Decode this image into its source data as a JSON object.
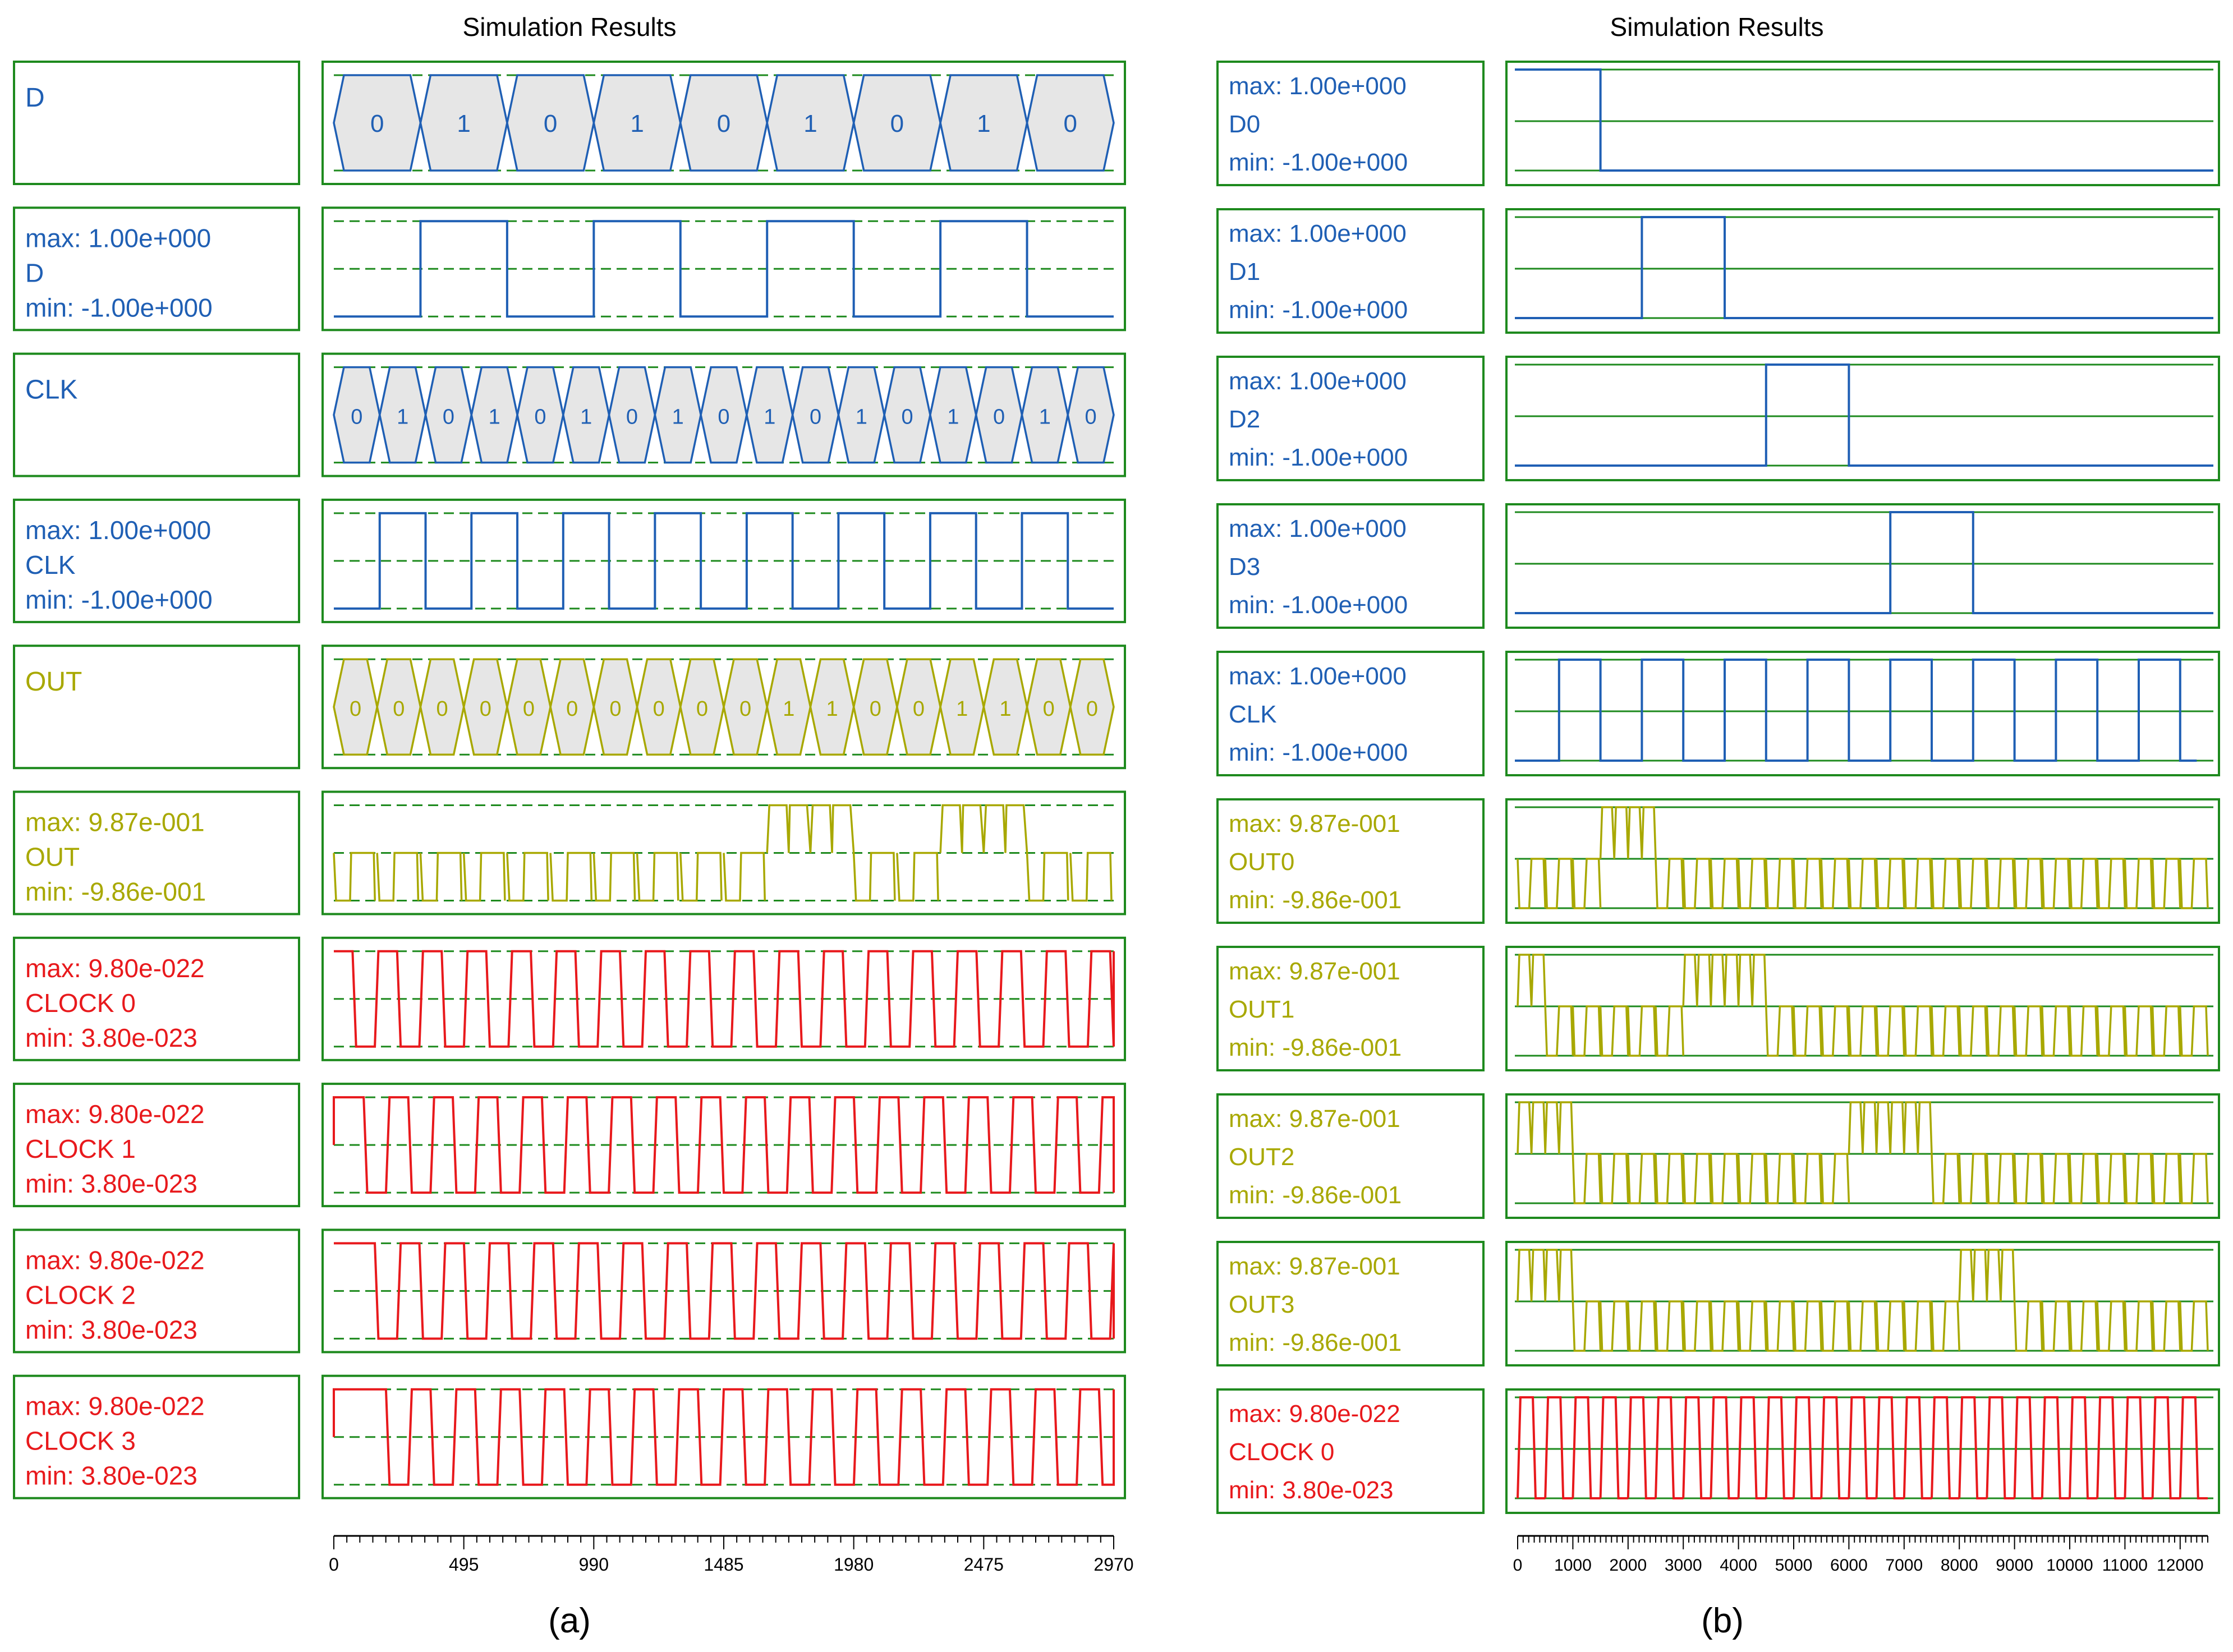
{
  "chart_data": [
    {
      "type": "waveform",
      "panel_label": "a",
      "title": "Simulation Results",
      "time_axis": {
        "min": 0,
        "max": 2970,
        "ticks": [
          0,
          495,
          990,
          1485,
          1980,
          2475,
          2970
        ]
      },
      "signals": [
        {
          "kind": "bus",
          "name": "D",
          "color": "#1f5fb4",
          "values": [
            "0",
            "1",
            "0",
            "1",
            "0",
            "1",
            "0",
            "1",
            "0"
          ]
        },
        {
          "kind": "digital",
          "name": "D",
          "max_label": "max: 1.00e+000",
          "min_label": "min: -1.00e+000",
          "color": "#1f5fb4",
          "levels": [
            0,
            1,
            0,
            1,
            0,
            1,
            0,
            1,
            0
          ]
        },
        {
          "kind": "bus",
          "name": "CLK",
          "color": "#1f5fb4",
          "values": [
            "0",
            "1",
            "0",
            "1",
            "0",
            "1",
            "0",
            "1",
            "0",
            "1",
            "0",
            "1",
            "0",
            "1",
            "0",
            "1",
            "0"
          ]
        },
        {
          "kind": "digital",
          "name": "CLK",
          "max_label": "max: 1.00e+000",
          "min_label": "min: -1.00e+000",
          "color": "#1f5fb4",
          "levels": [
            0,
            1,
            0,
            1,
            0,
            1,
            0,
            1,
            0,
            1,
            0,
            1,
            0,
            1,
            0,
            1,
            0
          ]
        },
        {
          "kind": "bus",
          "name": "OUT",
          "color": "#a8a800",
          "values": [
            "0",
            "0",
            "0",
            "0",
            "0",
            "0",
            "0",
            "0",
            "0",
            "0",
            "1",
            "1",
            "0",
            "0",
            "1",
            "1",
            "0",
            "0"
          ]
        },
        {
          "kind": "analog",
          "name": "OUT",
          "max_label": "max: 9.87e-001",
          "min_label": "min: -9.86e-001",
          "color": "#a8a800",
          "levels": [
            0,
            0,
            0,
            0,
            0,
            0,
            0,
            0,
            0,
            0,
            1,
            1,
            0,
            0,
            1,
            1,
            0,
            0
          ]
        },
        {
          "kind": "clock",
          "name": "CLOCK 0",
          "max_label": "max: 9.80e-022",
          "min_label": "min: 3.80e-023",
          "color": "#e8191c",
          "phase": 0
        },
        {
          "kind": "clock",
          "name": "CLOCK 1",
          "max_label": "max: 9.80e-022",
          "min_label": "min: 3.80e-023",
          "color": "#e8191c",
          "phase": 1
        },
        {
          "kind": "clock",
          "name": "CLOCK 2",
          "max_label": "max: 9.80e-022",
          "min_label": "min: 3.80e-023",
          "color": "#e8191c",
          "phase": 2
        },
        {
          "kind": "clock",
          "name": "CLOCK 3",
          "max_label": "max: 9.80e-022",
          "min_label": "min: 3.80e-023",
          "color": "#e8191c",
          "phase": 3
        }
      ]
    },
    {
      "type": "waveform",
      "panel_label": "b",
      "title": "Simulation Results",
      "time_axis": {
        "min": 0,
        "max": 12500,
        "ticks": [
          0,
          1000,
          2000,
          3000,
          4000,
          5000,
          6000,
          7000,
          8000,
          9000,
          10000,
          11000,
          12000
        ]
      },
      "signals": [
        {
          "kind": "pulse",
          "name": "D0",
          "max_label": "max: 1.00e+000",
          "min_label": "min: -1.00e+000",
          "color": "#1f5fb4",
          "start": 0,
          "end": 1500
        },
        {
          "kind": "pulse",
          "name": "D1",
          "max_label": "max: 1.00e+000",
          "min_label": "min: -1.00e+000",
          "color": "#1f5fb4",
          "start": 2250,
          "end": 3750
        },
        {
          "kind": "pulse",
          "name": "D2",
          "max_label": "max: 1.00e+000",
          "min_label": "min: -1.00e+000",
          "color": "#1f5fb4",
          "start": 4500,
          "end": 6000
        },
        {
          "kind": "pulse",
          "name": "D3",
          "max_label": "max: 1.00e+000",
          "min_label": "min: -1.00e+000",
          "color": "#1f5fb4",
          "start": 6750,
          "end": 8250
        },
        {
          "kind": "clock_b",
          "name": "CLK",
          "max_label": "max: 1.00e+000",
          "min_label": "min: -1.00e+000",
          "color": "#1f5fb4",
          "period": 1500
        },
        {
          "kind": "analog_b",
          "name": "OUT0",
          "max_label": "max: 9.87e-001",
          "min_label": "min: -9.86e-001",
          "color": "#a8a800",
          "high_start": 1200,
          "high_end": 2400
        },
        {
          "kind": "analog_b",
          "name": "OUT1",
          "max_label": "max: 9.87e-001",
          "min_label": "min: -9.86e-001",
          "color": "#a8a800",
          "high_start": 3000,
          "high_end": 4200,
          "initial_high_end": 400
        },
        {
          "kind": "analog_b",
          "name": "OUT2",
          "max_label": "max: 9.87e-001",
          "min_label": "min: -9.86e-001",
          "color": "#a8a800",
          "high_start": 5900,
          "high_end": 7100,
          "initial_high_end": 900
        },
        {
          "kind": "analog_b",
          "name": "OUT3",
          "max_label": "max: 9.87e-001",
          "min_label": "min: -9.86e-001",
          "color": "#a8a800",
          "high_start": 7600,
          "high_end": 8800,
          "initial_high_end": 900
        },
        {
          "kind": "clock_fast",
          "name": "CLOCK 0",
          "max_label": "max: 9.80e-022",
          "min_label": "min: 3.80e-023",
          "color": "#e8191c",
          "period": 500
        }
      ]
    }
  ],
  "frame_color": "#1e8a1e"
}
